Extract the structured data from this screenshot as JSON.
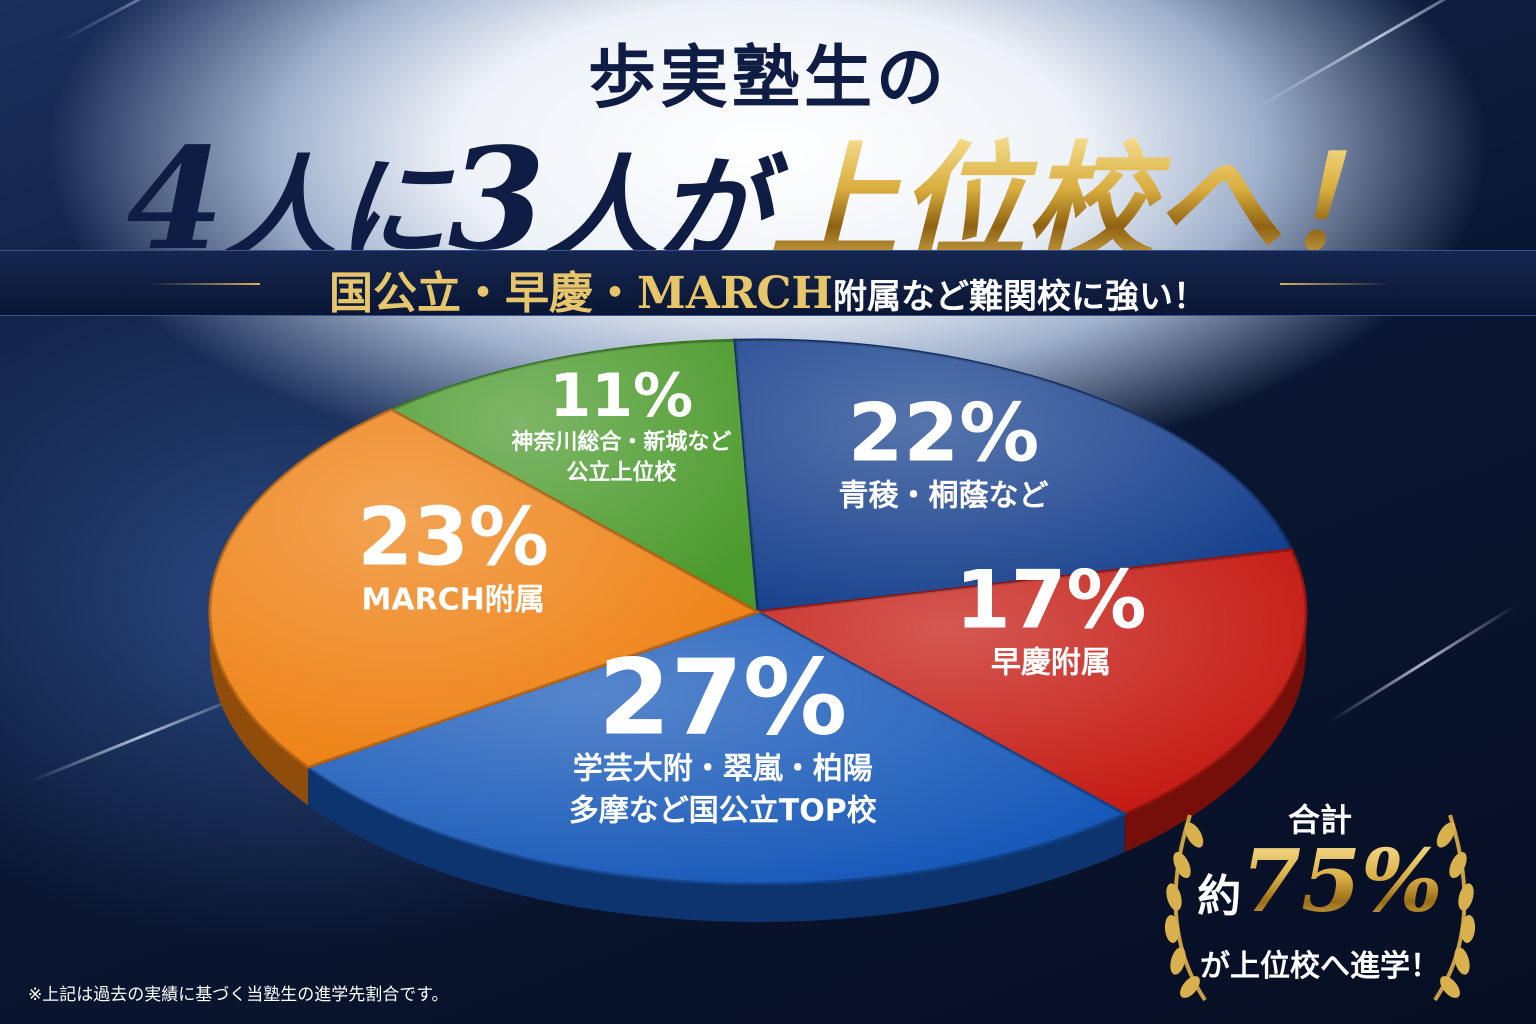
{
  "headline": {
    "line1": "歩実塾生の",
    "line2_parts": [
      "4",
      "人に",
      "3",
      "人が",
      "上位校へ！"
    ]
  },
  "banner": {
    "gold_text": "国公立・早慶・MARCH",
    "white_text": "附属など難関校に強い！"
  },
  "chart_data": {
    "type": "pie",
    "title": "",
    "slices": [
      {
        "value": 11,
        "percent_label": "11%",
        "label_lines": [
          "神奈川総合・新城など",
          "公立上位校"
        ],
        "color": "#4b9a2c"
      },
      {
        "value": 22,
        "percent_label": "22%",
        "label_lines": [
          "青稜・桐蔭など"
        ],
        "color": "#153f8c"
      },
      {
        "value": 17,
        "percent_label": "17%",
        "label_lines": [
          "早慶附属"
        ],
        "color": "#c4170f"
      },
      {
        "value": 27,
        "percent_label": "27%",
        "label_lines": [
          "学芸大附・翠嵐・柏陽",
          "多摩など国公立TOP校"
        ],
        "color": "#1557b8"
      },
      {
        "value": 23,
        "percent_label": "23%",
        "label_lines": [
          "MARCH附属"
        ],
        "color": "#ee7f10"
      }
    ]
  },
  "badge": {
    "top": "合計",
    "prefix": "約",
    "percent": "75%",
    "bottom": "が上位校へ進学！"
  },
  "footnote": "※上記は過去の実績に基づく当塾生の進学先割合です。",
  "colors": {
    "navy": "#0f1d45",
    "gold": "#d9ad3e",
    "banner_bg": "#0e1e44"
  }
}
